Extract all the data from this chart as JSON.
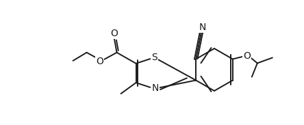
{
  "bg_color": "#ffffff",
  "line_color": "#1a1a1a",
  "line_width": 1.4,
  "font_size": 9.5,
  "figsize": [
    4.44,
    1.83
  ],
  "dpi": 100,
  "xlim": [
    0,
    444
  ],
  "ylim": [
    0,
    183
  ]
}
